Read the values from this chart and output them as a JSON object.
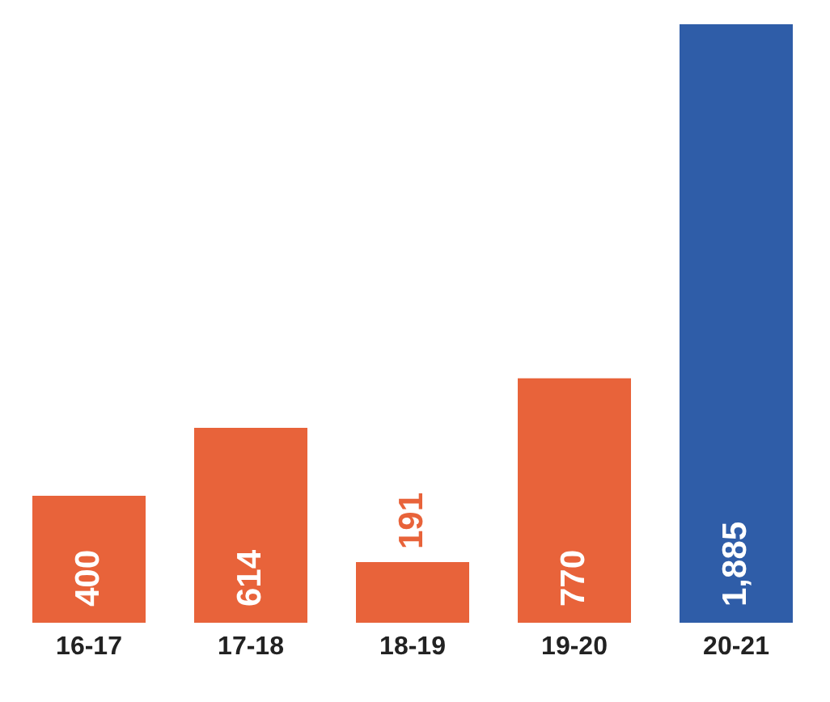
{
  "chart_data": {
    "type": "bar",
    "categories": [
      "16-17",
      "17-18",
      "18-19",
      "19-20",
      "20-21"
    ],
    "values": [
      400,
      614,
      191,
      770,
      1885
    ],
    "value_labels": [
      "400",
      "614",
      "191",
      "770",
      "1,885"
    ],
    "colors": [
      "#e8633a",
      "#e8633a",
      "#e8633a",
      "#e8633a",
      "#2f5da8"
    ]
  }
}
